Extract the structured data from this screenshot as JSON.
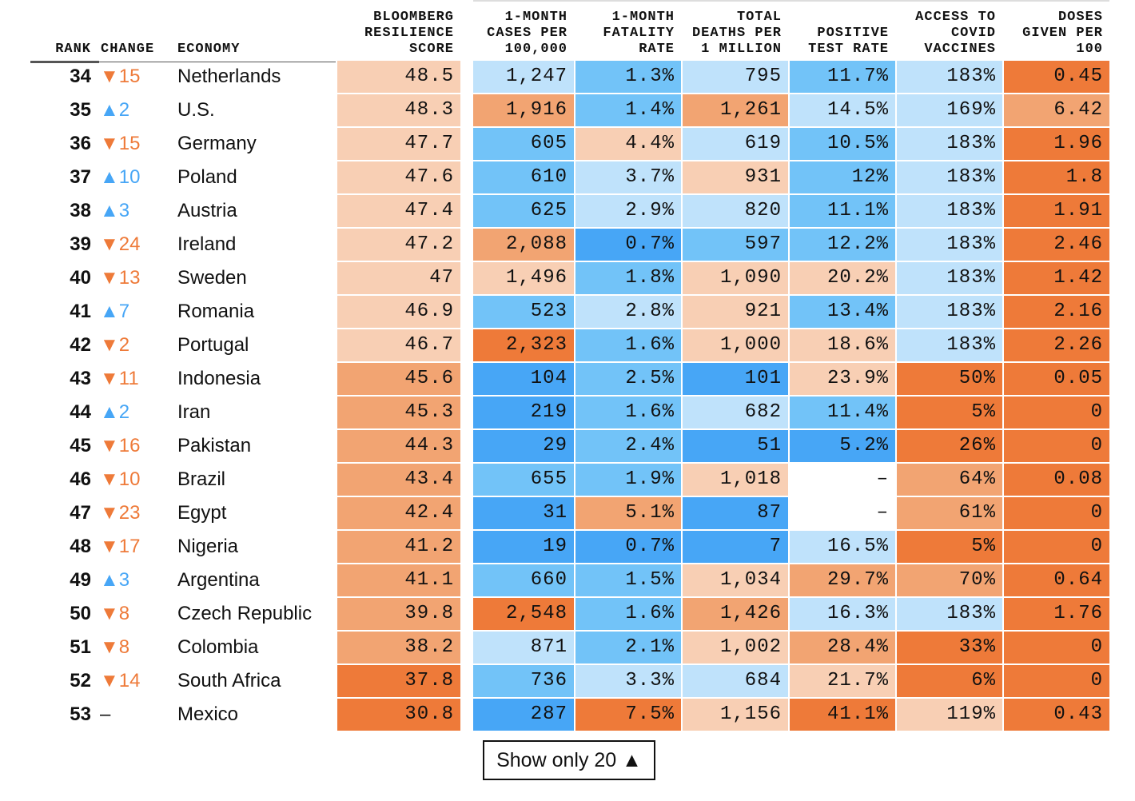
{
  "headers": {
    "rank": "RANK",
    "change": "CHANGE",
    "economy": "ECONOMY",
    "score": "BLOOMBERG\nRESILIENCE\nSCORE",
    "cases": "1-MONTH\nCASES PER\n100,000",
    "fatality": "1-MONTH\nFATALITY\nRATE",
    "deaths": "TOTAL\nDEATHS PER\n1 MILLION",
    "positive": "POSITIVE\nTEST RATE",
    "access": "ACCESS TO\nCOVID\nVACCINES",
    "doses": "DOSES\nGIVEN PER\n100"
  },
  "rows": [
    [
      "34",
      "▼15",
      "Netherlands",
      "48.5",
      "1,247",
      "1.3%",
      "795",
      "11.7%",
      "183%",
      "0.45"
    ],
    [
      "35",
      "▲2",
      "U.S.",
      "48.3",
      "1,916",
      "1.4%",
      "1,261",
      "14.5%",
      "169%",
      "6.42"
    ],
    [
      "36",
      "▼15",
      "Germany",
      "47.7",
      "605",
      "4.4%",
      "619",
      "10.5%",
      "183%",
      "1.96"
    ],
    [
      "37",
      "▲10",
      "Poland",
      "47.6",
      "610",
      "3.7%",
      "931",
      "12%",
      "183%",
      "1.8"
    ],
    [
      "38",
      "▲3",
      "Austria",
      "47.4",
      "625",
      "2.9%",
      "820",
      "11.1%",
      "183%",
      "1.91"
    ],
    [
      "39",
      "▼24",
      "Ireland",
      "47.2",
      "2,088",
      "0.7%",
      "597",
      "12.2%",
      "183%",
      "2.46"
    ],
    [
      "40",
      "▼13",
      "Sweden",
      "47",
      "1,496",
      "1.8%",
      "1,090",
      "20.2%",
      "183%",
      "1.42"
    ],
    [
      "41",
      "▲7",
      "Romania",
      "46.9",
      "523",
      "2.8%",
      "921",
      "13.4%",
      "183%",
      "2.16"
    ],
    [
      "42",
      "▼2",
      "Portugal",
      "46.7",
      "2,323",
      "1.6%",
      "1,000",
      "18.6%",
      "183%",
      "2.26"
    ],
    [
      "43",
      "▼11",
      "Indonesia",
      "45.6",
      "104",
      "2.5%",
      "101",
      "23.9%",
      "50%",
      "0.05"
    ],
    [
      "44",
      "▲2",
      "Iran",
      "45.3",
      "219",
      "1.6%",
      "682",
      "11.4%",
      "5%",
      "0"
    ],
    [
      "45",
      "▼16",
      "Pakistan",
      "44.3",
      "29",
      "2.4%",
      "51",
      "5.2%",
      "26%",
      "0"
    ],
    [
      "46",
      "▼10",
      "Brazil",
      "43.4",
      "655",
      "1.9%",
      "1,018",
      "–",
      "64%",
      "0.08"
    ],
    [
      "47",
      "▼23",
      "Egypt",
      "42.4",
      "31",
      "5.1%",
      "87",
      "–",
      "61%",
      "0"
    ],
    [
      "48",
      "▼17",
      "Nigeria",
      "41.2",
      "19",
      "0.7%",
      "7",
      "16.5%",
      "5%",
      "0"
    ],
    [
      "49",
      "▲3",
      "Argentina",
      "41.1",
      "660",
      "1.5%",
      "1,034",
      "29.7%",
      "70%",
      "0.64"
    ],
    [
      "50",
      "▼8",
      "Czech Republic",
      "39.8",
      "2,548",
      "1.6%",
      "1,426",
      "16.3%",
      "183%",
      "1.76"
    ],
    [
      "51",
      "▼8",
      "Colombia",
      "38.2",
      "871",
      "2.1%",
      "1,002",
      "28.4%",
      "33%",
      "0"
    ],
    [
      "52",
      "▼14",
      "South Africa",
      "37.8",
      "736",
      "3.3%",
      "684",
      "21.7%",
      "6%",
      "0"
    ],
    [
      "53",
      "–",
      "Mexico",
      "30.8",
      "287",
      "7.5%",
      "1,156",
      "41.1%",
      "119%",
      "0.43"
    ]
  ],
  "colors": [
    [
      "#f8cfb4",
      "#bfe2fb",
      "#72c3f8",
      "#bfe2fb",
      "#72c3f8",
      "#bfe2fb",
      "#ee7a39"
    ],
    [
      "#f8cfb4",
      "#f2a472",
      "#72c3f8",
      "#f2a472",
      "#bfe2fb",
      "#bfe2fb",
      "#f2a472"
    ],
    [
      "#f8cfb4",
      "#72c3f8",
      "#f8cfb4",
      "#bfe2fb",
      "#72c3f8",
      "#bfe2fb",
      "#ee7a39"
    ],
    [
      "#f8cfb4",
      "#72c3f8",
      "#bfe2fb",
      "#f8cfb4",
      "#72c3f8",
      "#bfe2fb",
      "#ee7a39"
    ],
    [
      "#f8cfb4",
      "#72c3f8",
      "#bfe2fb",
      "#bfe2fb",
      "#72c3f8",
      "#bfe2fb",
      "#ee7a39"
    ],
    [
      "#f8cfb4",
      "#f2a472",
      "#47a6f6",
      "#72c3f8",
      "#72c3f8",
      "#bfe2fb",
      "#ee7a39"
    ],
    [
      "#f8cfb4",
      "#f8cfb4",
      "#72c3f8",
      "#f8cfb4",
      "#f8cfb4",
      "#bfe2fb",
      "#ee7a39"
    ],
    [
      "#f8cfb4",
      "#72c3f8",
      "#bfe2fb",
      "#f8cfb4",
      "#72c3f8",
      "#bfe2fb",
      "#ee7a39"
    ],
    [
      "#f8cfb4",
      "#ee7a39",
      "#72c3f8",
      "#f8cfb4",
      "#f8cfb4",
      "#bfe2fb",
      "#ee7a39"
    ],
    [
      "#f2a472",
      "#47a6f6",
      "#72c3f8",
      "#47a6f6",
      "#f8cfb4",
      "#ee7a39",
      "#ee7a39"
    ],
    [
      "#f2a472",
      "#47a6f6",
      "#72c3f8",
      "#bfe2fb",
      "#72c3f8",
      "#ee7a39",
      "#ee7a39"
    ],
    [
      "#f2a472",
      "#47a6f6",
      "#72c3f8",
      "#47a6f6",
      "#47a6f6",
      "#ee7a39",
      "#ee7a39"
    ],
    [
      "#f2a472",
      "#72c3f8",
      "#72c3f8",
      "#f8cfb4",
      "#ffffff",
      "#f2a472",
      "#ee7a39"
    ],
    [
      "#f2a472",
      "#47a6f6",
      "#f2a472",
      "#47a6f6",
      "#ffffff",
      "#f2a472",
      "#ee7a39"
    ],
    [
      "#f2a472",
      "#47a6f6",
      "#47a6f6",
      "#47a6f6",
      "#bfe2fb",
      "#ee7a39",
      "#ee7a39"
    ],
    [
      "#f2a472",
      "#72c3f8",
      "#72c3f8",
      "#f8cfb4",
      "#f2a472",
      "#f2a472",
      "#ee7a39"
    ],
    [
      "#f2a472",
      "#ee7a39",
      "#72c3f8",
      "#f2a472",
      "#bfe2fb",
      "#bfe2fb",
      "#ee7a39"
    ],
    [
      "#f2a472",
      "#bfe2fb",
      "#72c3f8",
      "#f8cfb4",
      "#f2a472",
      "#ee7a39",
      "#ee7a39"
    ],
    [
      "#ee7a39",
      "#72c3f8",
      "#bfe2fb",
      "#bfe2fb",
      "#f8cfb4",
      "#ee7a39",
      "#ee7a39"
    ],
    [
      "#ee7a39",
      "#47a6f6",
      "#ee7a39",
      "#f8cfb4",
      "#ee7a39",
      "#f8cfb4",
      "#ee7a39"
    ]
  ],
  "button": "Show only 20 ▲"
}
